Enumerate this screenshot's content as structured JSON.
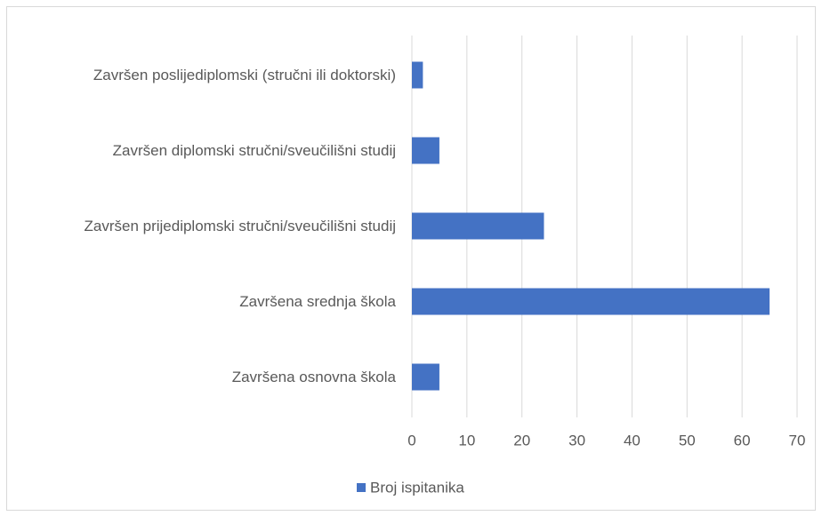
{
  "chart_data": {
    "type": "bar",
    "orientation": "horizontal",
    "categories": [
      "Završen poslijediplomski (stručni ili doktorski)",
      "Završen diplomski stručni/sveučilišni studij",
      "Završen prijediplomski stručni/sveučilišni studij",
      "Završena srednja škola",
      "Završena osnovna škola"
    ],
    "series": [
      {
        "name": "Broj ispitanika",
        "color": "#4472c4",
        "values": [
          2,
          5,
          24,
          65,
          5
        ]
      }
    ],
    "xlim": [
      0,
      70
    ],
    "xticks": [
      0,
      10,
      20,
      30,
      40,
      50,
      60,
      70
    ],
    "grid": true,
    "legend": "bottom"
  }
}
